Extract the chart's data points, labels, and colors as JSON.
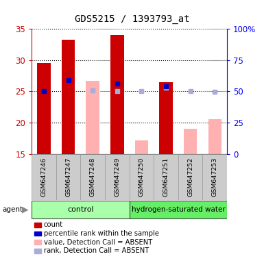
{
  "title": "GDS5215 / 1393793_at",
  "samples": [
    "GSM647246",
    "GSM647247",
    "GSM647248",
    "GSM647249",
    "GSM647250",
    "GSM647251",
    "GSM647252",
    "GSM647253"
  ],
  "red_bars": [
    29.5,
    33.3,
    null,
    34.0,
    null,
    26.5,
    null,
    null
  ],
  "pink_bars": [
    null,
    null,
    26.7,
    null,
    17.2,
    null,
    19.0,
    20.5
  ],
  "blue_dots": [
    25.1,
    26.8,
    null,
    26.3,
    null,
    25.8,
    null,
    null
  ],
  "lightblue_dots": [
    null,
    null,
    25.2,
    25.0,
    25.05,
    25.55,
    25.1,
    24.9
  ],
  "ylim_left": [
    15,
    35
  ],
  "ylim_right": [
    0,
    100
  ],
  "yticks_left": [
    15,
    20,
    25,
    30,
    35
  ],
  "yticks_right": [
    0,
    25,
    50,
    75,
    100
  ],
  "ytick_labels_right": [
    "0",
    "25",
    "50",
    "75",
    "100%"
  ],
  "bar_width": 0.55,
  "red_color": "#cc0000",
  "pink_color": "#ffb0b0",
  "blue_color": "#0000cc",
  "lightblue_color": "#aaaadd",
  "group_control_color": "#aaffaa",
  "group_hw_color": "#66ee66",
  "agent_label": "agent",
  "group1_label": "control",
  "group2_label": "hydrogen-saturated water",
  "legend_items": [
    {
      "color": "#cc0000",
      "label": "count"
    },
    {
      "color": "#0000cc",
      "label": "percentile rank within the sample"
    },
    {
      "color": "#ffb0b0",
      "label": "value, Detection Call = ABSENT"
    },
    {
      "color": "#aaaadd",
      "label": "rank, Detection Call = ABSENT"
    }
  ],
  "n_control": 4,
  "n_hw": 4
}
